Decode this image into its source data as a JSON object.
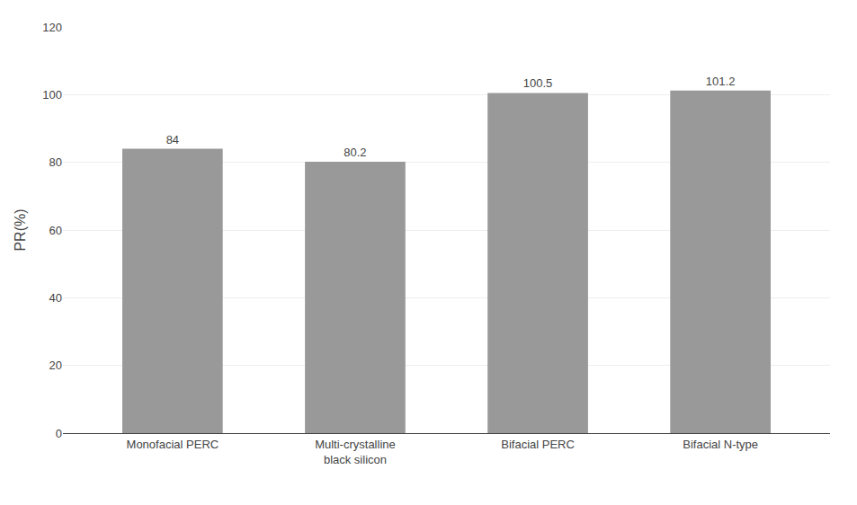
{
  "chart_data": {
    "type": "bar",
    "categories": [
      "Monofacial PERC",
      "Multi-crystalline\nblack silicon",
      "Bifacial PERC",
      "Bifacial N-type"
    ],
    "values": [
      84,
      80.2,
      100.5,
      101.2
    ],
    "color": "#999999",
    "ylabel": "PR(%)",
    "ylim": [
      0,
      120
    ],
    "yticks": [
      0,
      20,
      40,
      60,
      80,
      100,
      120
    ],
    "grid": true,
    "data_labels": true
  }
}
